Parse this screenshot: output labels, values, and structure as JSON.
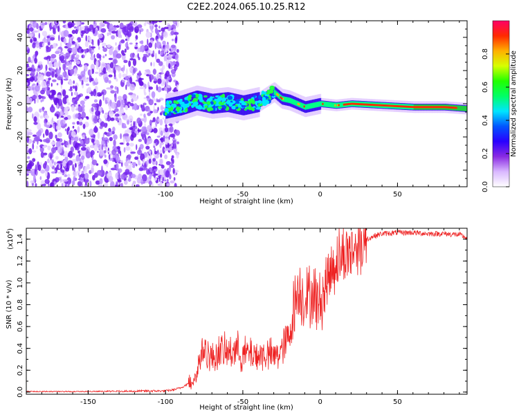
{
  "title": "C2E2.2024.065.10.25.R12",
  "colors": {
    "axis": "#000000",
    "line": "#ee2222",
    "dot": "#7a2cf0",
    "colorbar_stops": [
      "#ffffff",
      "#d9b8ff",
      "#8a2be2",
      "#2a00ff",
      "#0055ff",
      "#00e5ff",
      "#00ff66",
      "#22ff00",
      "#d6ff00",
      "#ffb000",
      "#ff2a00",
      "#ff0066"
    ]
  },
  "chart_data": [
    {
      "type": "heatmap",
      "name": "spectrogram",
      "xlabel": "Height of straight line (km)",
      "ylabel": "Frequency (Hz)",
      "xlim": [
        -190,
        95
      ],
      "ylim": [
        -50,
        50
      ],
      "xticks": [
        -150,
        -100,
        -50,
        0,
        50
      ],
      "yticks": [
        -40,
        -20,
        0,
        20,
        40
      ],
      "ridge": {
        "x": [
          -100,
          -90,
          -80,
          -70,
          -60,
          -50,
          -40,
          -35,
          -30,
          -25,
          -20,
          -15,
          -10,
          -5,
          0,
          10,
          20,
          40,
          60,
          80,
          95
        ],
        "freq": [
          -3,
          -1,
          2,
          0,
          1,
          -1,
          1,
          4,
          7,
          3,
          2,
          0,
          -2,
          -1,
          0,
          -1,
          0,
          -1,
          -2,
          -2,
          -3
        ]
      },
      "noise_region_x": [
        -190,
        -100
      ]
    },
    {
      "type": "line",
      "name": "snr",
      "xlabel": "Height of straight line (km)",
      "ylabel": "SNR (10 * v/v)",
      "multiplier_label": "(x10",
      "multiplier_exp": "4",
      "multiplier_close": ")",
      "xlim": [
        -190,
        95
      ],
      "ylim": [
        -0.02,
        1.5
      ],
      "xticks": [
        -150,
        -100,
        -50,
        0,
        50
      ],
      "yticks": [
        0.0,
        0.2,
        0.4,
        0.6,
        0.8,
        1.0,
        1.2,
        1.4
      ],
      "x": [
        -190,
        -150,
        -110,
        -100,
        -95,
        -90,
        -85,
        -80,
        -78,
        -75,
        -70,
        -65,
        -60,
        -55,
        -50,
        -45,
        -40,
        -35,
        -30,
        -25,
        -20,
        -18,
        -16,
        -14,
        -12,
        -10,
        -5,
        0,
        5,
        10,
        15,
        20,
        25,
        30,
        35,
        40,
        50,
        60,
        70,
        80,
        90,
        95
      ],
      "y": [
        0.0,
        0.0,
        0.01,
        0.01,
        0.02,
        0.04,
        0.08,
        0.15,
        0.3,
        0.4,
        0.3,
        0.38,
        0.35,
        0.4,
        0.34,
        0.36,
        0.33,
        0.35,
        0.32,
        0.38,
        0.5,
        0.7,
        0.85,
        0.95,
        0.9,
        0.85,
        0.9,
        0.8,
        1.05,
        1.2,
        1.25,
        1.3,
        1.35,
        1.4,
        1.43,
        1.45,
        1.46,
        1.46,
        1.45,
        1.45,
        1.44,
        1.41
      ]
    },
    {
      "type": "colorbar",
      "name": "colorbar",
      "label": "Normalized spectral amplitude",
      "ylim": [
        0,
        1
      ],
      "ticks": [
        0.0,
        0.2,
        0.4,
        0.6,
        0.8
      ]
    }
  ]
}
